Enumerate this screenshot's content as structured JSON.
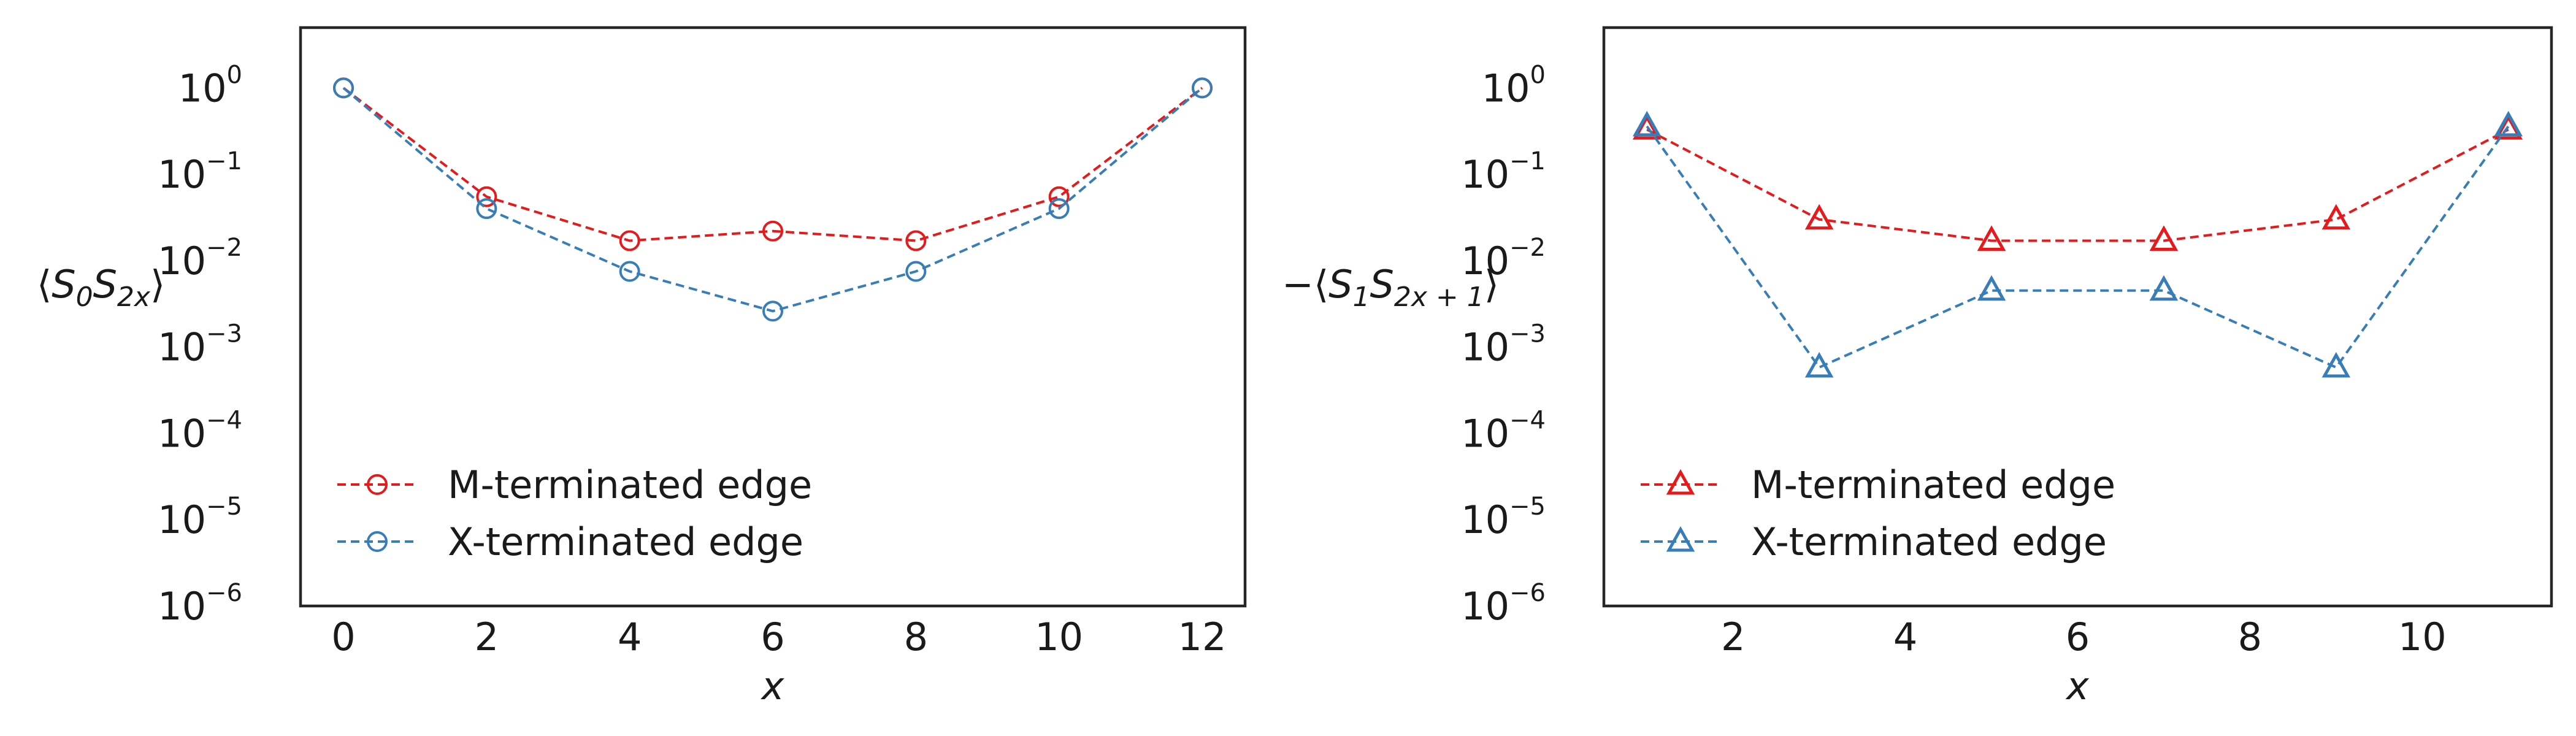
{
  "chart_data": [
    {
      "type": "line",
      "scale": "log",
      "ylabel": "⟨S₀S₂ₓ⟩",
      "ylabel_parts": {
        "pre": "⟨",
        "main1": "S",
        "sub1": "0",
        "main2": "S",
        "sub2": "2x",
        "post": "⟩"
      },
      "xlabel": "x",
      "x_ticks": [
        "0",
        "2",
        "4",
        "6",
        "8",
        "10",
        "12"
      ],
      "y_ticks": [
        {
          "base": "10",
          "exp": "0"
        },
        {
          "base": "10",
          "exp": "−1"
        },
        {
          "base": "10",
          "exp": "−2"
        },
        {
          "base": "10",
          "exp": "−3"
        },
        {
          "base": "10",
          "exp": "−4"
        },
        {
          "base": "10",
          "exp": "−5"
        },
        {
          "base": "10",
          "exp": "−6"
        }
      ],
      "xlim": [
        -0.6,
        12.6
      ],
      "ylim": [
        1e-06,
        5
      ],
      "marker": "circle",
      "legend_position": "lower-left",
      "series": [
        {
          "name": "M-terminated edge",
          "color": "#e41a1c",
          "x": [
            0,
            2,
            4,
            6,
            8,
            10,
            12
          ],
          "y": [
            1.0,
            0.055,
            0.017,
            0.022,
            0.017,
            0.055,
            1.0
          ]
        },
        {
          "name": "X-terminated edge",
          "color": "#377eb8",
          "x": [
            0,
            2,
            4,
            6,
            8,
            10,
            12
          ],
          "y": [
            1.0,
            0.04,
            0.0075,
            0.0026,
            0.0075,
            0.04,
            1.0
          ]
        }
      ]
    },
    {
      "type": "line",
      "scale": "log",
      "ylabel": "−⟨S₁S₂ₓ₊₁⟩",
      "ylabel_parts": {
        "pre": "−⟨",
        "main1": "S",
        "sub1": "1",
        "main2": "S",
        "sub2": "2x + 1",
        "post": "⟩"
      },
      "xlabel": "x",
      "x_ticks": [
        "2",
        "4",
        "6",
        "8",
        "10"
      ],
      "y_ticks": [
        {
          "base": "10",
          "exp": "0"
        },
        {
          "base": "10",
          "exp": "−1"
        },
        {
          "base": "10",
          "exp": "−2"
        },
        {
          "base": "10",
          "exp": "−3"
        },
        {
          "base": "10",
          "exp": "−4"
        },
        {
          "base": "10",
          "exp": "−5"
        },
        {
          "base": "10",
          "exp": "−6"
        }
      ],
      "xlim": [
        0.5,
        11.5
      ],
      "ylim": [
        1e-06,
        5
      ],
      "marker": "triangle",
      "legend_position": "lower-left",
      "series": [
        {
          "name": "M-terminated edge",
          "color": "#e41a1c",
          "x": [
            1,
            3,
            5,
            7,
            9,
            11
          ],
          "y": [
            0.33,
            0.03,
            0.017,
            0.017,
            0.03,
            0.33
          ]
        },
        {
          "name": "X-terminated edge",
          "color": "#377eb8",
          "x": [
            1,
            3,
            5,
            7,
            9,
            11
          ],
          "y": [
            0.36,
            0.00058,
            0.0045,
            0.0045,
            0.00058,
            0.36
          ]
        }
      ]
    }
  ]
}
